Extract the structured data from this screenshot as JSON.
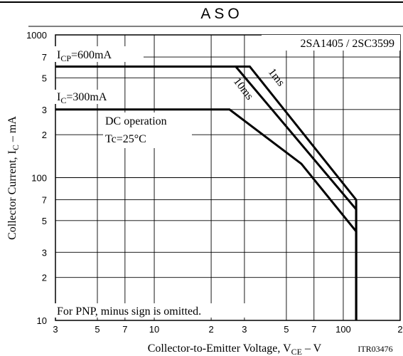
{
  "chart_data": {
    "type": "line",
    "title": "ASO",
    "xlabel": [
      "Collector-to-Emitter Voltage, V",
      "CE",
      " – V"
    ],
    "ylabel": [
      "Collector Current, I",
      "C",
      " – mA"
    ],
    "code": "ITR03476",
    "xscale": "log",
    "yscale": "log",
    "grid": true,
    "xlim": [
      3,
      200
    ],
    "ylim": [
      10,
      1000
    ],
    "xticks": [
      3,
      5,
      7,
      10,
      {
        "value": 20,
        "label": "2"
      },
      {
        "value": 30,
        "label": "3"
      },
      {
        "value": 50,
        "label": "5"
      },
      {
        "value": 70,
        "label": "7"
      },
      100,
      {
        "value": 200,
        "label": "2"
      }
    ],
    "yticks": [
      10,
      {
        "value": 20,
        "label": "2"
      },
      {
        "value": 30,
        "label": "3"
      },
      {
        "value": 50,
        "label": "5"
      },
      {
        "value": 70,
        "label": "7"
      },
      100,
      {
        "value": 200,
        "label": "2"
      },
      {
        "value": 300,
        "label": "3"
      },
      {
        "value": 500,
        "label": "5"
      },
      {
        "value": 700,
        "label": "7"
      },
      1000
    ],
    "series": [
      {
        "color": "#000000",
        "x": [
          3,
          32,
          117,
          117
        ],
        "y": [
          600,
          600,
          70,
          10
        ]
      },
      {
        "color": "#000000",
        "x": [
          27,
          117,
          117
        ],
        "y": [
          600,
          60,
          10
        ]
      },
      {
        "color": "#000000",
        "x": [
          3,
          25,
          60,
          117,
          117
        ],
        "y": [
          300,
          300,
          125,
          42,
          10
        ]
      }
    ],
    "annotations": {
      "icp": [
        "I",
        "CP",
        "=600mA"
      ],
      "ic": [
        "I",
        "C",
        "=300mA"
      ],
      "dc": "DC operation",
      "tc": "Tc=25°C",
      "part": "2SA1405 / 2SC3599",
      "ms10": "10ms",
      "ms1": "1ms",
      "note": "For PNP, minus sign is omitted."
    }
  }
}
